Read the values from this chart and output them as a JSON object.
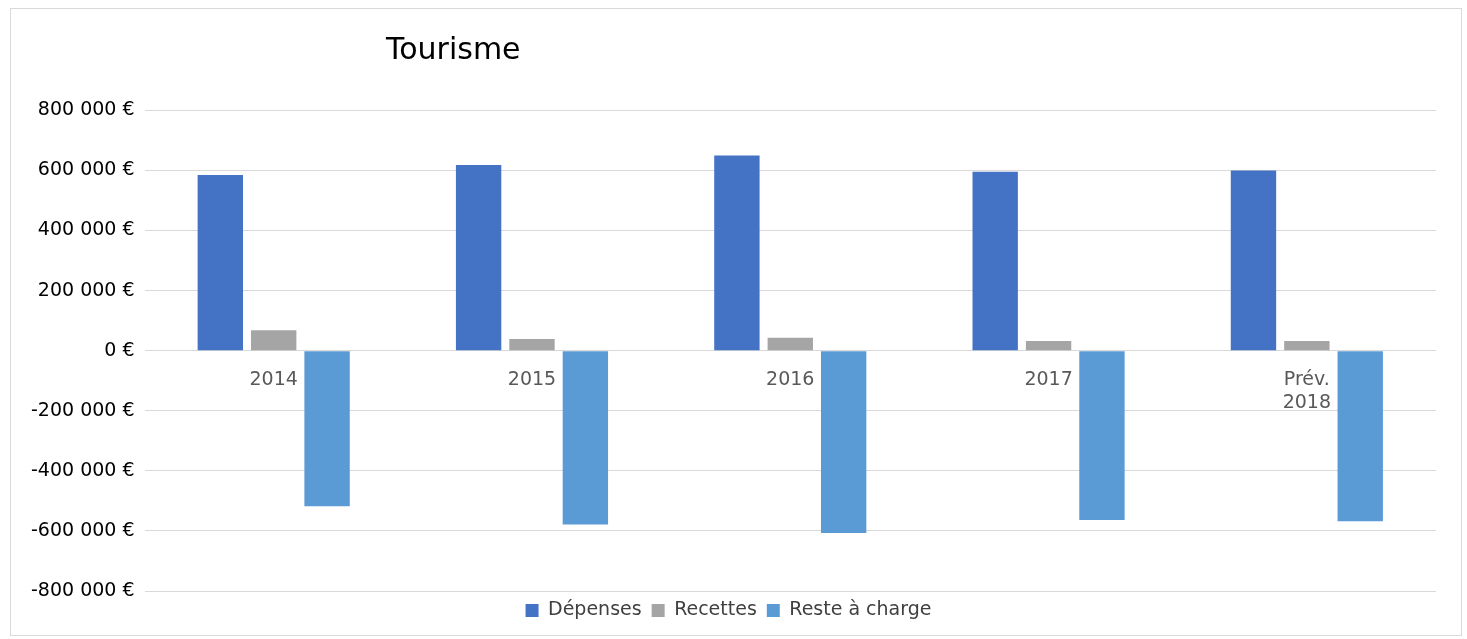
{
  "chart_data": {
    "type": "bar",
    "title": "Tourisme",
    "categories": [
      "2014",
      "2015",
      "2016",
      "2017",
      "Prév. 2018"
    ],
    "series": [
      {
        "name": "Dépenses",
        "color": "#4472c4",
        "values": [
          585000,
          618000,
          650000,
          596000,
          600000
        ]
      },
      {
        "name": "Recettes",
        "color": "#a5a5a5",
        "values": [
          68000,
          39000,
          43000,
          32000,
          32000
        ]
      },
      {
        "name": "Reste à charge",
        "color": "#5b9bd5",
        "values": [
          -518000,
          -579000,
          -607000,
          -564000,
          -568000
        ]
      }
    ],
    "ylim": [
      -800000,
      800000
    ],
    "yticks": [
      {
        "value": -800000,
        "label": "-800 000 €"
      },
      {
        "value": -600000,
        "label": "-600 000 €"
      },
      {
        "value": -400000,
        "label": "-400 000 €"
      },
      {
        "value": -200000,
        "label": "-200 000 €"
      },
      {
        "value": 0,
        "label": "0 €"
      },
      {
        "value": 200000,
        "label": "200 000 €"
      },
      {
        "value": 400000,
        "label": "400 000 €"
      },
      {
        "value": 600000,
        "label": "600 000 €"
      },
      {
        "value": 800000,
        "label": "800 000 €"
      }
    ],
    "grid": "y",
    "legend": "bottom"
  }
}
